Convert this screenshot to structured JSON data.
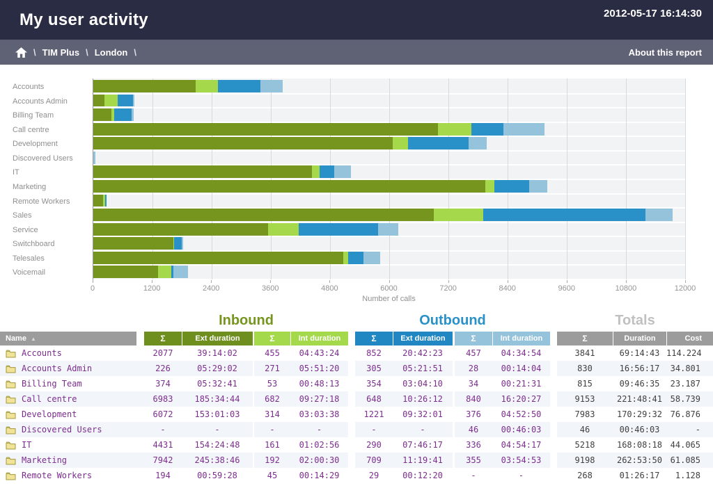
{
  "header": {
    "title": "My user activity",
    "timestamp": "2012-05-17 16:14:30"
  },
  "breadcrumb": {
    "home_icon": "home-icon",
    "separator": "\\",
    "items": [
      "TIM Plus",
      "London"
    ],
    "about": "About this report"
  },
  "colors": {
    "topbar": "#292c42",
    "breadcrumb_bar": "#5f6174",
    "inbound_ext": "#76951e",
    "inbound_int": "#a6d84c",
    "outbound_ext": "#2991c8",
    "outbound_int": "#96c3dc",
    "header_inbound_ext": "#6e8e1d",
    "header_inbound_int": "#a5d94c",
    "header_outbound_ext": "#2187c2",
    "header_outbound_int": "#96c3dc",
    "header_gray": "#9c9c9c",
    "totals_title": "#c0c0c0",
    "name_text": "#7c2d8e",
    "totals_text": "#3f3f3f"
  },
  "chart_data": {
    "type": "bar",
    "orientation": "horizontal",
    "stacked": true,
    "title": "",
    "xlabel": "Number of calls",
    "xlim": [
      0,
      12000
    ],
    "xticks": [
      0,
      1200,
      2400,
      3600,
      4800,
      6000,
      7200,
      8400,
      9600,
      10800,
      12000
    ],
    "grid": "vertical",
    "legend_position": "none",
    "categories": [
      "Accounts",
      "Accounts Admin",
      "Billing Team",
      "Call centre",
      "Development",
      "Discovered Users",
      "IT",
      "Marketing",
      "Remote Workers",
      "Sales",
      "Service",
      "Switchboard",
      "Telesales",
      "Voicemail"
    ],
    "series": [
      {
        "name": "Inbound Ext calls",
        "color": "#76951e",
        "values": [
          2077,
          226,
          374,
          6983,
          6072,
          0,
          4431,
          7942,
          194,
          6900,
          3540,
          1620,
          5070,
          1310
        ]
      },
      {
        "name": "Inbound Int calls",
        "color": "#a6d84c",
        "values": [
          455,
          271,
          53,
          682,
          314,
          0,
          161,
          192,
          45,
          1000,
          620,
          20,
          90,
          265
        ]
      },
      {
        "name": "Outbound Ext calls",
        "color": "#2991c8",
        "values": [
          852,
          305,
          354,
          648,
          1221,
          0,
          290,
          709,
          29,
          3300,
          1620,
          150,
          320,
          45
        ]
      },
      {
        "name": "Outbound Int calls",
        "color": "#96c3dc",
        "values": [
          457,
          28,
          34,
          840,
          376,
          46,
          336,
          355,
          0,
          550,
          400,
          30,
          330,
          300
        ]
      }
    ]
  },
  "table": {
    "section_headers": [
      {
        "label": "Inbound"
      },
      {
        "label": "Outbound"
      },
      {
        "label": "Totals"
      }
    ],
    "name_header": "Name",
    "sort_icon": "▲",
    "sum_symbol": "Σ",
    "columns": {
      "in_ext": "Ext duration",
      "in_int": "Int duration",
      "out_ext": "Ext duration",
      "out_int": "Int duration",
      "total_dur": "Duration",
      "cost": "Cost"
    },
    "rows": [
      {
        "name": "Accounts",
        "cells": [
          "2077",
          "39:14:02",
          "455",
          "04:43:24",
          "852",
          "20:42:23",
          "457",
          "04:34:54",
          "3841",
          "69:14:43",
          "114.224"
        ]
      },
      {
        "name": "Accounts Admin",
        "cells": [
          "226",
          "05:29:02",
          "271",
          "05:51:20",
          "305",
          "05:21:51",
          "28",
          "00:14:04",
          "830",
          "16:56:17",
          "34.801"
        ]
      },
      {
        "name": "Billing Team",
        "cells": [
          "374",
          "05:32:41",
          "53",
          "00:48:13",
          "354",
          "03:04:10",
          "34",
          "00:21:31",
          "815",
          "09:46:35",
          "23.187"
        ]
      },
      {
        "name": "Call centre",
        "cells": [
          "6983",
          "185:34:44",
          "682",
          "09:27:18",
          "648",
          "10:26:12",
          "840",
          "16:20:27",
          "9153",
          "221:48:41",
          "58.739"
        ]
      },
      {
        "name": "Development",
        "cells": [
          "6072",
          "153:01:03",
          "314",
          "03:03:38",
          "1221",
          "09:32:01",
          "376",
          "04:52:50",
          "7983",
          "170:29:32",
          "76.876"
        ]
      },
      {
        "name": "Discovered Users",
        "cells": [
          "-",
          "-",
          "-",
          "-",
          "-",
          "-",
          "46",
          "00:46:03",
          "46",
          "00:46:03",
          "-"
        ]
      },
      {
        "name": "IT",
        "cells": [
          "4431",
          "154:24:48",
          "161",
          "01:02:56",
          "290",
          "07:46:17",
          "336",
          "04:54:17",
          "5218",
          "168:08:18",
          "44.065"
        ]
      },
      {
        "name": "Marketing",
        "cells": [
          "7942",
          "245:38:46",
          "192",
          "02:00:30",
          "709",
          "11:19:41",
          "355",
          "03:54:53",
          "9198",
          "262:53:50",
          "61.085"
        ]
      },
      {
        "name": "Remote Workers",
        "cells": [
          "194",
          "00:59:28",
          "45",
          "00:14:29",
          "29",
          "00:12:20",
          "-",
          "-",
          "268",
          "01:26:17",
          "1.128"
        ]
      }
    ]
  }
}
